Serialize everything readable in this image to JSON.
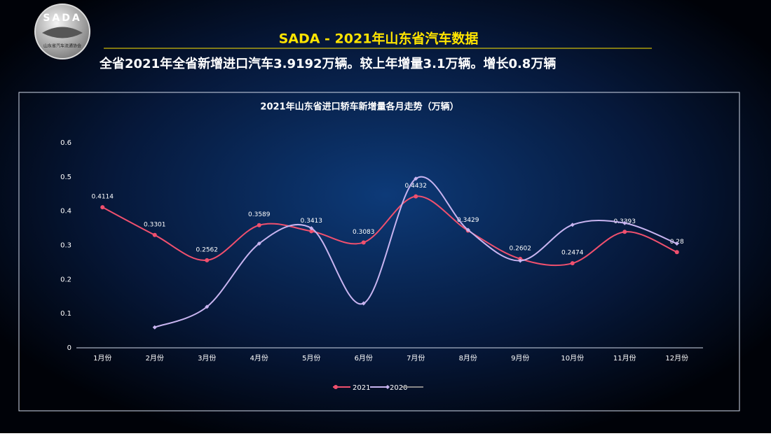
{
  "header": {
    "logo_text": "SADA",
    "logo_subtext": "山东省汽车流通协会",
    "title": "SADA -  2021年山东省汽车数据",
    "subtitle": "全省2021年全省新增进口汽车3.9192万辆。较上年增量3.1万辆。增长0.8万辆"
  },
  "chart_data": {
    "type": "line",
    "title": "2021年山东省进口轿车新增量各月走势（万辆）",
    "categories": [
      "1月份",
      "2月份",
      "3月份",
      "4月份",
      "5月份",
      "6月份",
      "7月份",
      "8月份",
      "9月份",
      "10月份",
      "11月份",
      "12月份"
    ],
    "series": [
      {
        "name": "2021",
        "color": "#f0506e",
        "values": [
          0.4114,
          0.3301,
          0.2562,
          0.3589,
          0.3413,
          0.3083,
          0.4432,
          0.3429,
          0.2602,
          0.2474,
          0.3393,
          0.28
        ]
      },
      {
        "name": "2020",
        "color": "#c8b4f0",
        "values": [
          null,
          0.06,
          0.12,
          0.305,
          0.35,
          0.13,
          0.495,
          0.345,
          0.255,
          0.36,
          0.365,
          0.305
        ]
      }
    ],
    "ylim": [
      0,
      0.6
    ],
    "yticks": [
      0,
      0.1,
      0.2,
      0.3,
      0.4,
      0.5,
      0.6
    ],
    "smooth": true,
    "data_labels_series": 0
  }
}
